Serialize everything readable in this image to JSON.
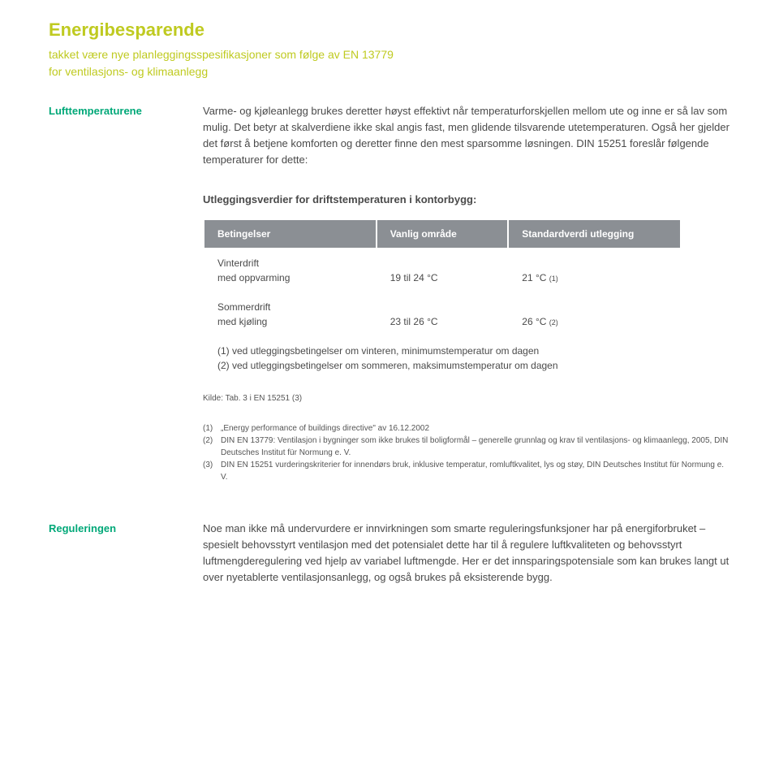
{
  "title": "Energibesparende",
  "subtitle_line1": "takket være nye planleggingsspesifikasjoner som følge av EN 13779",
  "subtitle_line2": "for ventilasjons- og klimaanlegg",
  "lufttemp": {
    "label": "Lufttemperaturene",
    "body": "Varme- og kjøleanlegg brukes deretter høyst effektivt når temperaturforskjellen mellom ute og inne er så lav som mulig. Det betyr at skalverdiene ikke skal angis fast, men glidende tilsvarende utetemperaturen. Også her gjelder det først å betjene komforten og deretter finne den mest sparsomme løsningen. DIN 15251 foreslår følgende temperaturer for dette:"
  },
  "table": {
    "heading": "Utleggingsverdier for driftstemperaturen i kontorbygg:",
    "columns": [
      "Betingelser",
      "Vanlig område",
      "Standardverdi utlegging"
    ],
    "rows": [
      {
        "cond_line1": "Vinterdrift",
        "cond_line2": "med oppvarming",
        "range": "19 til 24 °C",
        "std": "21 °C ",
        "std_note": "(1)"
      },
      {
        "cond_line1": "Sommerdrift",
        "cond_line2": "med kjøling",
        "range": "23 til 26 °C",
        "std": "26 °C ",
        "std_note": "(2)"
      }
    ],
    "footnote1": "(1) ved utleggingsbetingelser om vinteren, minimumstemperatur om dagen",
    "footnote2": "(2) ved utleggingsbetingelser om sommeren, maksimumstemperatur om dagen",
    "source": "Kilde: Tab. 3 i EN 15251 (3)",
    "header_bg": "#8b8f94",
    "header_color": "#ffffff"
  },
  "references": [
    {
      "num": "(1)",
      "text": "„Energy performance of buildings directive\" av 16.12.2002"
    },
    {
      "num": "(2)",
      "text": "DIN EN 13779: Ventilasjon i bygninger som ikke brukes til boligformål – generelle grunnlag og krav til ventilasjons- og klimaanlegg, 2005, DIN Deutsches Institut für Normung e. V."
    },
    {
      "num": "(3)",
      "text": "DIN EN 15251 vurderingskriterier for innendørs bruk, inklusive temperatur, romluftkvalitet, lys og støy, DIN Deutsches Institut für Normung e. V."
    }
  ],
  "regulering": {
    "label": "Reguleringen",
    "body": "Noe man ikke må undervurdere er innvirkningen som smarte reguleringsfunksjoner har på energiforbruket – spesielt behovsstyrt ventilasjon med det potensialet dette har til å regulere luftkvaliteten og behovsstyrt luftmengderegulering ved hjelp av variabel luftmengde. Her er det innsparingspotensiale som kan brukes langt ut over nyetablerte ventilasjonsanlegg, og også brukes på eksisterende bygg."
  },
  "colors": {
    "accent_green": "#bfca20",
    "teal": "#00a878",
    "text": "#4a4a4a"
  }
}
